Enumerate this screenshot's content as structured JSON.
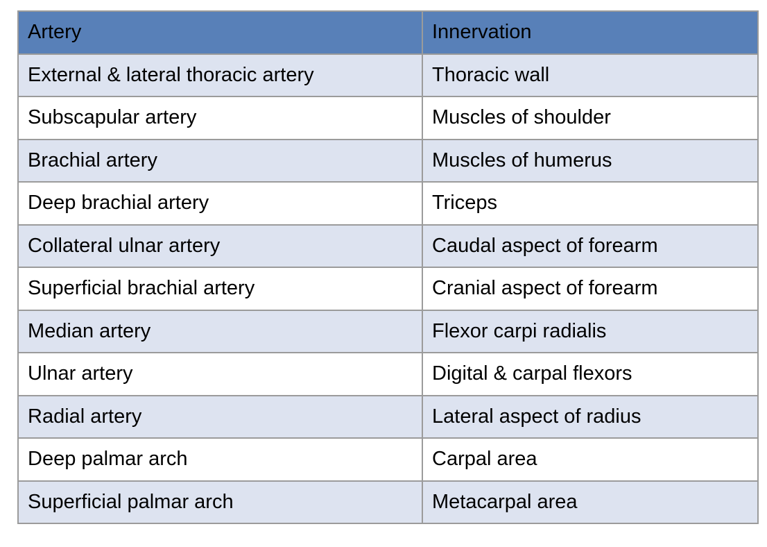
{
  "table": {
    "name": "artery-innervation-table",
    "columns": [
      "Artery",
      "Innervation"
    ],
    "rows": [
      [
        "External & lateral thoracic artery",
        "Thoracic wall"
      ],
      [
        "Subscapular artery",
        "Muscles of shoulder"
      ],
      [
        "Brachial artery",
        "Muscles of humerus"
      ],
      [
        "Deep brachial artery",
        "Triceps"
      ],
      [
        "Collateral ulnar artery",
        "Caudal aspect of forearm"
      ],
      [
        "Superficial brachial artery",
        "Cranial aspect of forearm"
      ],
      [
        "Median artery",
        "Flexor carpi radialis"
      ],
      [
        "Ulnar artery",
        "Digital & carpal flexors"
      ],
      [
        "Radial artery",
        "Lateral aspect of radius"
      ],
      [
        "Deep palmar arch",
        "Carpal area"
      ],
      [
        "Superficial palmar arch",
        "Metacarpal area"
      ]
    ],
    "colors": {
      "header_bg": "#5880b8",
      "stripe_row_bg": "#dde3f0",
      "plain_row_bg": "#ffffff",
      "border": "#9b9b9b",
      "outer_border": "#7d7d7d",
      "text": "#000000"
    }
  }
}
